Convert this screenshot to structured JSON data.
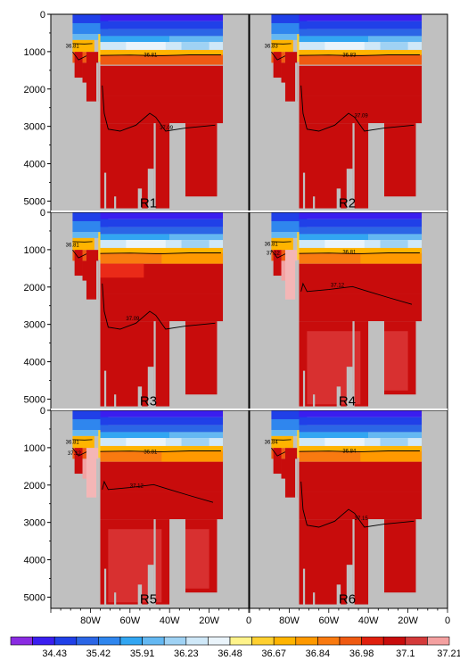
{
  "chart_data": {
    "type": "heatmap",
    "title": "",
    "xlabel": "",
    "ylabel": "",
    "x_ticks": [
      "80W",
      "60W",
      "40W",
      "20W",
      "0"
    ],
    "y_ticks": [
      "0",
      "1000",
      "2000",
      "3000",
      "4000",
      "5000"
    ],
    "ylim": [
      5300,
      0
    ],
    "colorbar": {
      "labels": [
        "34.43",
        "35.42",
        "35.91",
        "36.23",
        "36.48",
        "36.67",
        "36.84",
        "36.98",
        "37.1",
        "37.21"
      ],
      "colors": [
        "#8a2be2",
        "#3a1ef0",
        "#2040e8",
        "#2b66e6",
        "#2f86ee",
        "#32a6f2",
        "#64b8f2",
        "#9fd2f4",
        "#cfe8f8",
        "#eaf4fb",
        "#fff38a",
        "#ffd030",
        "#ffb400",
        "#ff9900",
        "#f97a10",
        "#ef5a12",
        "#e0200e",
        "#c80c0c",
        "#d43a3a",
        "#f4a0a0"
      ]
    },
    "panels": [
      {
        "name": "R1",
        "contour_labels": [
          "36.81",
          "36.81",
          "37.09"
        ]
      },
      {
        "name": "R2",
        "contour_labels": [
          "36.83",
          "36.83",
          "37.09"
        ]
      },
      {
        "name": "R3",
        "contour_labels": [
          "36.81",
          "37.09"
        ]
      },
      {
        "name": "R4",
        "contour_labels": [
          "36.81",
          "37.12",
          "36.81",
          "37.12"
        ]
      },
      {
        "name": "R5",
        "contour_labels": [
          "36.81",
          "37.12",
          "36.81",
          "37.12"
        ]
      },
      {
        "name": "R6",
        "contour_labels": [
          "36.84",
          "36.84",
          "37.15"
        ]
      }
    ],
    "colors": {
      "land": "#c0c0c0",
      "frame": "#000000"
    }
  }
}
